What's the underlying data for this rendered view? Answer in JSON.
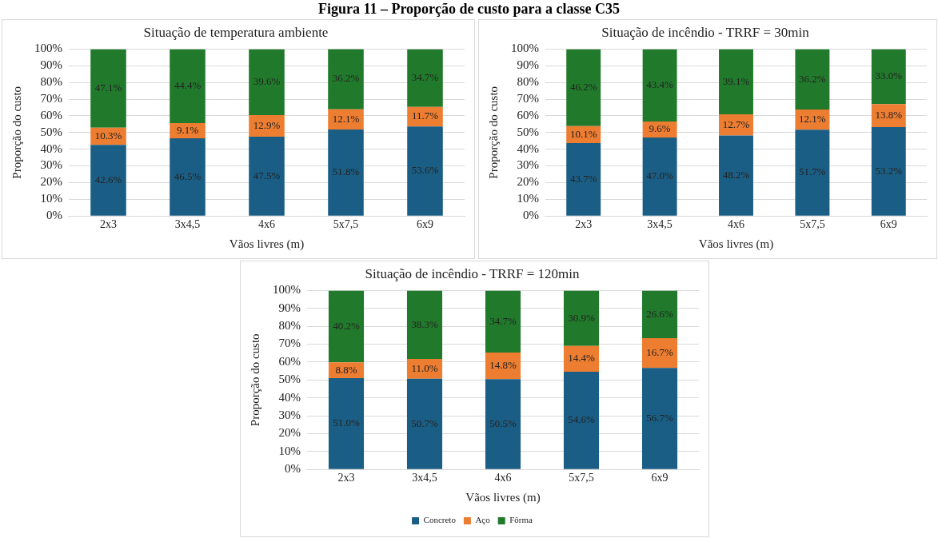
{
  "chart_data": [
    {
      "type": "bar",
      "title": "Situação de temperatura ambiente",
      "xlabel": "Vãos livres (m)",
      "ylabel": "Proporção do custo",
      "annotations": [
        "Figura 11 – Proporção de custo para a classe C35"
      ],
      "categories": [
        "2x3",
        "3x4,5",
        "4x6",
        "5x7,5",
        "6x9"
      ],
      "stacked": true,
      "grid": "y",
      "legend": false,
      "ylim": [
        0,
        100
      ],
      "yticks": [
        {
          "value": 0,
          "label": "0%"
        },
        {
          "value": 10,
          "label": "10%"
        },
        {
          "value": 20,
          "label": "20%"
        },
        {
          "value": 30,
          "label": "30%"
        },
        {
          "value": 40,
          "label": "40%"
        },
        {
          "value": 50,
          "label": "50%"
        },
        {
          "value": 60,
          "label": "60%"
        },
        {
          "value": 70,
          "label": "70%"
        },
        {
          "value": 80,
          "label": "80%"
        },
        {
          "value": 90,
          "label": "90%"
        },
        {
          "value": 100,
          "label": "100%"
        }
      ],
      "series": [
        {
          "color": "#1b5e85",
          "values": [
            42.6,
            46.5,
            47.5,
            51.8,
            53.6
          ],
          "value_labels": [
            "42.6%",
            "46.5%",
            "47.5%",
            "51.8%",
            "53.6%"
          ]
        },
        {
          "color": "#ed7d31",
          "values": [
            10.3,
            9.1,
            12.9,
            12.1,
            11.7
          ],
          "value_labels": [
            "10.3%",
            "9.1%",
            "12.9%",
            "12.1%",
            "11.7%"
          ]
        },
        {
          "color": "#217a2b",
          "values": [
            47.1,
            44.4,
            39.6,
            36.2,
            34.7
          ],
          "value_labels": [
            "47.1%",
            "44.4%",
            "39.6%",
            "36.2%",
            "34.7%"
          ]
        }
      ]
    },
    {
      "type": "bar",
      "title": "Situação de incêndio - TRRF = 30min",
      "xlabel": "Vãos livres (m)",
      "ylabel": "Proporção do custo",
      "categories": [
        "2x3",
        "3x4,5",
        "4x6",
        "5x7,5",
        "6x9"
      ],
      "stacked": true,
      "grid": "y",
      "legend": false,
      "ylim": [
        0,
        100
      ],
      "yticks": [
        {
          "value": 0,
          "label": "0%"
        },
        {
          "value": 10,
          "label": "10%"
        },
        {
          "value": 20,
          "label": "20%"
        },
        {
          "value": 30,
          "label": "30%"
        },
        {
          "value": 40,
          "label": "40%"
        },
        {
          "value": 50,
          "label": "50%"
        },
        {
          "value": 60,
          "label": "60%"
        },
        {
          "value": 70,
          "label": "70%"
        },
        {
          "value": 80,
          "label": "80%"
        },
        {
          "value": 90,
          "label": "90%"
        },
        {
          "value": 100,
          "label": "100%"
        }
      ],
      "series": [
        {
          "color": "#1b5e85",
          "values": [
            43.7,
            47.0,
            48.2,
            51.7,
            53.2
          ],
          "value_labels": [
            "43.7%",
            "47.0%",
            "48.2%",
            "51.7%",
            "53.2%"
          ]
        },
        {
          "color": "#ed7d31",
          "values": [
            10.1,
            9.6,
            12.7,
            12.1,
            13.8
          ],
          "value_labels": [
            "10.1%",
            "9.6%",
            "12.7%",
            "12.1%",
            "13.8%"
          ]
        },
        {
          "color": "#217a2b",
          "values": [
            46.2,
            43.4,
            39.1,
            36.2,
            33.0
          ],
          "value_labels": [
            "46.2%",
            "43.4%",
            "39.1%",
            "36.2%",
            "33.0%"
          ]
        }
      ]
    },
    {
      "type": "bar",
      "title": "Situação de incêndio - TRRF = 120min",
      "xlabel": "Vãos livres (m)",
      "ylabel": "Proporção do custo",
      "categories": [
        "2x3",
        "3x4,5",
        "4x6",
        "5x7,5",
        "6x9"
      ],
      "stacked": true,
      "grid": "y",
      "legend": "bottom",
      "ylim": [
        0,
        100
      ],
      "yticks": [
        {
          "value": 0,
          "label": "0%"
        },
        {
          "value": 10,
          "label": "10%"
        },
        {
          "value": 20,
          "label": "20%"
        },
        {
          "value": 30,
          "label": "30%"
        },
        {
          "value": 40,
          "label": "40%"
        },
        {
          "value": 50,
          "label": "50%"
        },
        {
          "value": 60,
          "label": "60%"
        },
        {
          "value": 70,
          "label": "70%"
        },
        {
          "value": 80,
          "label": "80%"
        },
        {
          "value": 90,
          "label": "90%"
        },
        {
          "value": 100,
          "label": "100%"
        }
      ],
      "series": [
        {
          "name": "Concreto",
          "color": "#1b5e85",
          "values": [
            51.0,
            50.7,
            50.5,
            54.6,
            56.7
          ],
          "value_labels": [
            "51.0%",
            "50.7%",
            "50.5%",
            "54.6%",
            "56.7%"
          ]
        },
        {
          "name": "Aço",
          "color": "#ed7d31",
          "values": [
            8.8,
            11.0,
            14.8,
            14.4,
            16.7
          ],
          "value_labels": [
            "8.8%",
            "11.0%",
            "14.8%",
            "14.4%",
            "16.7%"
          ]
        },
        {
          "name": "Fôrma",
          "color": "#217a2b",
          "values": [
            40.2,
            38.3,
            34.7,
            30.9,
            26.6
          ],
          "value_labels": [
            "40.2%",
            "38.3%",
            "34.7%",
            "30.9%",
            "26.6%"
          ]
        }
      ]
    }
  ]
}
